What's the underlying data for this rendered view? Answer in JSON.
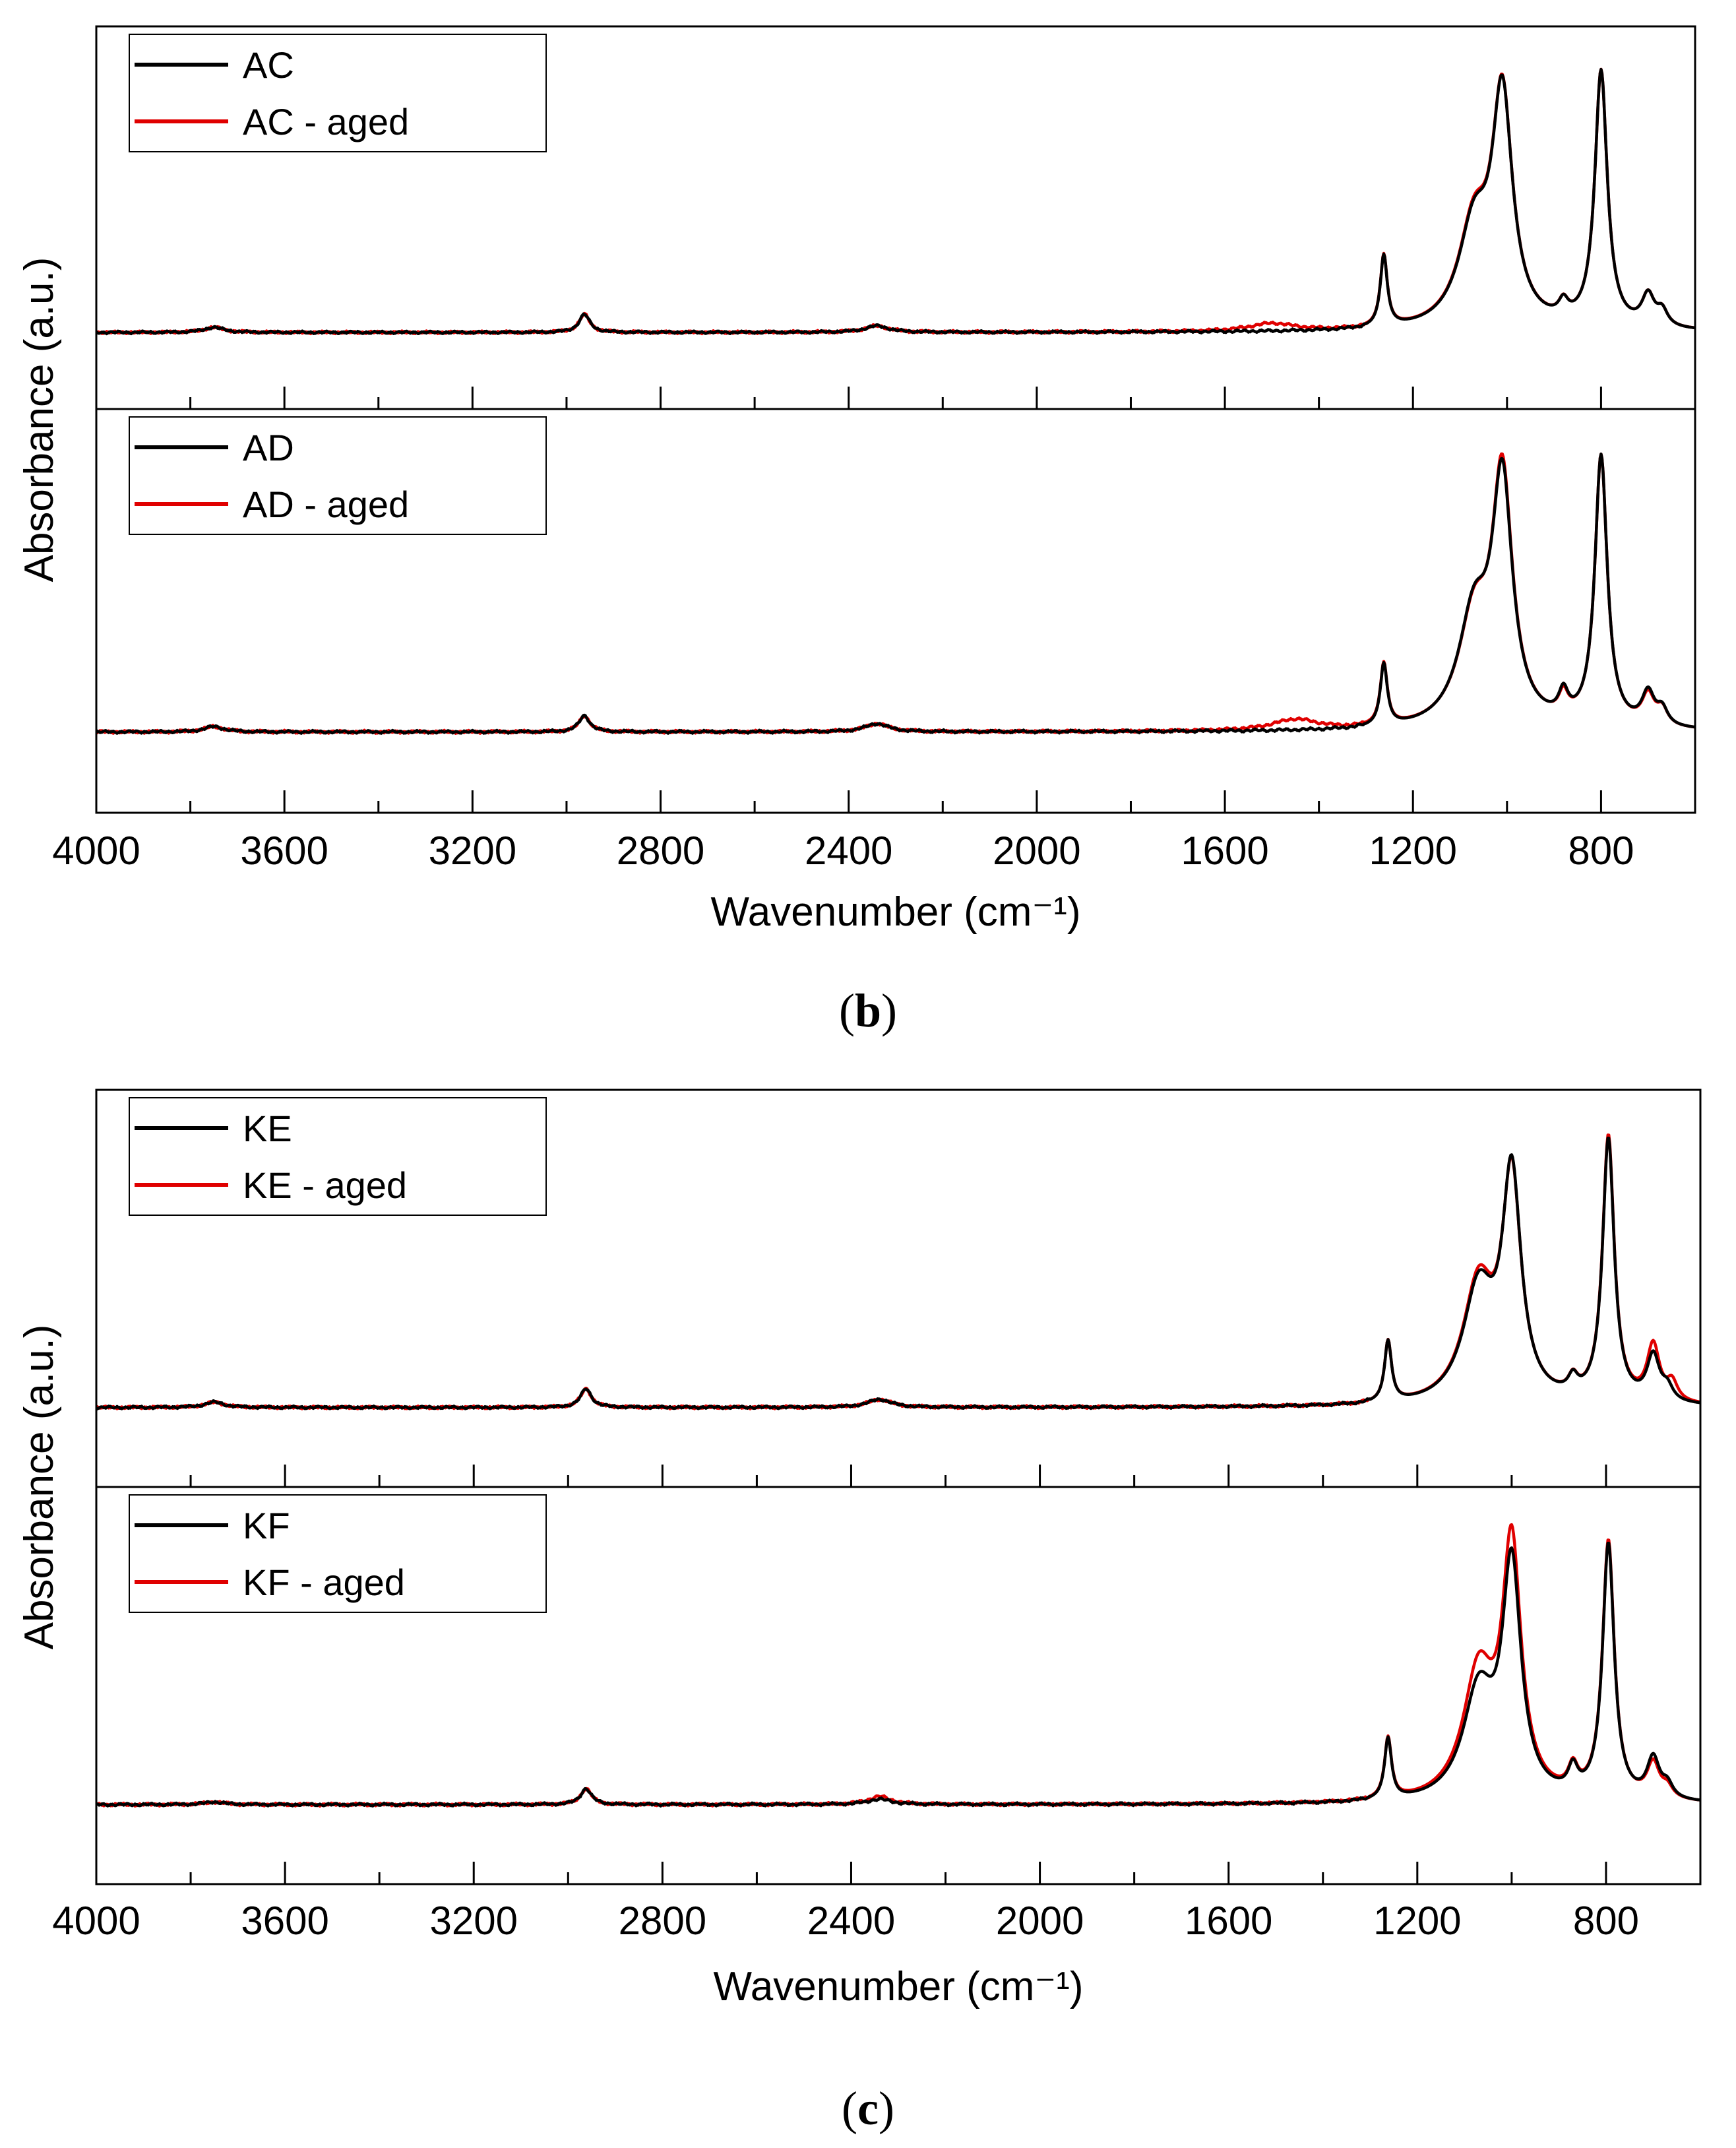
{
  "chart_data": [
    {
      "type": "line",
      "caption": "(b)",
      "caption_open": "(",
      "caption_letter": "b",
      "caption_close": ")",
      "xlabel": "Wavenumber (cm⁻¹)",
      "ylabel": "Absorbance (a.u.)",
      "xlim": [
        4000,
        600
      ],
      "xticks": [
        4000,
        3600,
        3200,
        2800,
        2400,
        2000,
        1600,
        1200,
        800
      ],
      "xminor_ticks": [
        3800,
        3400,
        3000,
        2600,
        2200,
        1800,
        1400,
        1000
      ],
      "panels": [
        {
          "id": "AC",
          "ylim": [
            0,
            1.2
          ],
          "legend": "top-left",
          "series": [
            {
              "name": "AC",
              "color": "#000000",
              "peaks": [
                [
                  3750,
                  0.02,
                  25
                ],
                [
                  2962,
                  0.07,
                  14
                ],
                [
                  2340,
                  0.025,
                  30
                ],
                [
                  1262,
                  0.28,
                  9
                ],
                [
                  1070,
                  0.38,
                  40
                ],
                [
                  1010,
                  0.88,
                  26
                ],
                [
                  880,
                  0.06,
                  12
                ],
                [
                  800,
                  1.0,
                  16
                ],
                [
                  700,
                  0.12,
                  16
                ],
                [
                  670,
                  0.06,
                  14
                ]
              ]
            },
            {
              "name": "AC - aged",
              "color": "#e00000",
              "peaks": [
                [
                  3750,
                  0.02,
                  25
                ],
                [
                  2962,
                  0.07,
                  14
                ],
                [
                  2340,
                  0.025,
                  30
                ],
                [
                  1500,
                  0.03,
                  60
                ],
                [
                  1262,
                  0.28,
                  9
                ],
                [
                  1070,
                  0.39,
                  40
                ],
                [
                  1010,
                  0.88,
                  26
                ],
                [
                  880,
                  0.06,
                  12
                ],
                [
                  800,
                  1.0,
                  16
                ],
                [
                  700,
                  0.12,
                  16
                ],
                [
                  670,
                  0.06,
                  14
                ]
              ]
            }
          ]
        },
        {
          "id": "AD",
          "ylim": [
            0,
            1.2
          ],
          "legend": "top-left",
          "series": [
            {
              "name": "AD",
              "color": "#000000",
              "peaks": [
                [
                  3750,
                  0.02,
                  25
                ],
                [
                  2962,
                  0.06,
                  14
                ],
                [
                  2340,
                  0.03,
                  30
                ],
                [
                  1262,
                  0.23,
                  9
                ],
                [
                  1070,
                  0.4,
                  40
                ],
                [
                  1010,
                  0.88,
                  26
                ],
                [
                  880,
                  0.09,
                  12
                ],
                [
                  800,
                  1.0,
                  16
                ],
                [
                  700,
                  0.12,
                  16
                ],
                [
                  670,
                  0.06,
                  14
                ]
              ]
            },
            {
              "name": "AD - aged",
              "color": "#e00000",
              "peaks": [
                [
                  3750,
                  0.02,
                  25
                ],
                [
                  2962,
                  0.06,
                  14
                ],
                [
                  2340,
                  0.03,
                  30
                ],
                [
                  1450,
                  0.04,
                  60
                ],
                [
                  1262,
                  0.23,
                  9
                ],
                [
                  1070,
                  0.39,
                  40
                ],
                [
                  1010,
                  0.9,
                  26
                ],
                [
                  880,
                  0.08,
                  12
                ],
                [
                  800,
                  1.0,
                  16
                ],
                [
                  700,
                  0.11,
                  16
                ],
                [
                  670,
                  0.06,
                  14
                ]
              ]
            }
          ]
        }
      ]
    },
    {
      "type": "line",
      "caption": "(c)",
      "caption_open": "(",
      "caption_letter": "c",
      "caption_close": ")",
      "xlabel": "Wavenumber (cm⁻¹)",
      "ylabel": "Absorbance (a.u.)",
      "xlim": [
        4000,
        600
      ],
      "xticks": [
        4000,
        3600,
        3200,
        2800,
        2400,
        2000,
        1600,
        1200,
        800
      ],
      "xminor_ticks": [
        3800,
        3400,
        3000,
        2600,
        2200,
        1800,
        1400,
        1000
      ],
      "panels": [
        {
          "id": "KE",
          "ylim": [
            0,
            1.2
          ],
          "legend": "top-left",
          "series": [
            {
              "name": "KE",
              "color": "#000000",
              "peaks": [
                [
                  3750,
                  0.02,
                  25
                ],
                [
                  2962,
                  0.07,
                  14
                ],
                [
                  2340,
                  0.03,
                  30
                ],
                [
                  1262,
                  0.23,
                  9
                ],
                [
                  1070,
                  0.42,
                  40
                ],
                [
                  1000,
                  0.84,
                  24
                ],
                [
                  870,
                  0.06,
                  12
                ],
                [
                  795,
                  0.99,
                  15
                ],
                [
                  700,
                  0.17,
                  16
                ],
                [
                  670,
                  0.05,
                  14
                ]
              ]
            },
            {
              "name": "KE - aged",
              "color": "#e00000",
              "peaks": [
                [
                  3750,
                  0.02,
                  25
                ],
                [
                  2962,
                  0.07,
                  14
                ],
                [
                  2340,
                  0.03,
                  30
                ],
                [
                  1262,
                  0.23,
                  9
                ],
                [
                  1070,
                  0.44,
                  40
                ],
                [
                  1000,
                  0.83,
                  24
                ],
                [
                  870,
                  0.06,
                  12
                ],
                [
                  795,
                  1.0,
                  15
                ],
                [
                  700,
                  0.21,
                  16
                ],
                [
                  660,
                  0.07,
                  14
                ]
              ]
            }
          ]
        },
        {
          "id": "KF",
          "ylim": [
            0,
            1.2
          ],
          "legend": "top-left",
          "series": [
            {
              "name": "KF",
              "color": "#000000",
              "peaks": [
                [
                  3750,
                  0.01,
                  25
                ],
                [
                  2962,
                  0.06,
                  14
                ],
                [
                  2340,
                  0.02,
                  30
                ],
                [
                  1262,
                  0.23,
                  9
                ],
                [
                  1070,
                  0.4,
                  40
                ],
                [
                  1000,
                  0.86,
                  24
                ],
                [
                  870,
                  0.09,
                  12
                ],
                [
                  795,
                  0.96,
                  15
                ],
                [
                  700,
                  0.15,
                  16
                ],
                [
                  670,
                  0.05,
                  14
                ]
              ]
            },
            {
              "name": "KF - aged",
              "color": "#e00000",
              "peaks": [
                [
                  3750,
                  0.01,
                  25
                ],
                [
                  2962,
                  0.06,
                  14
                ],
                [
                  2340,
                  0.03,
                  30
                ],
                [
                  1262,
                  0.23,
                  9
                ],
                [
                  1070,
                  0.47,
                  40
                ],
                [
                  1000,
                  0.93,
                  24
                ],
                [
                  870,
                  0.09,
                  12
                ],
                [
                  795,
                  0.97,
                  15
                ],
                [
                  700,
                  0.13,
                  16
                ],
                [
                  670,
                  0.04,
                  14
                ]
              ]
            }
          ]
        }
      ]
    }
  ]
}
